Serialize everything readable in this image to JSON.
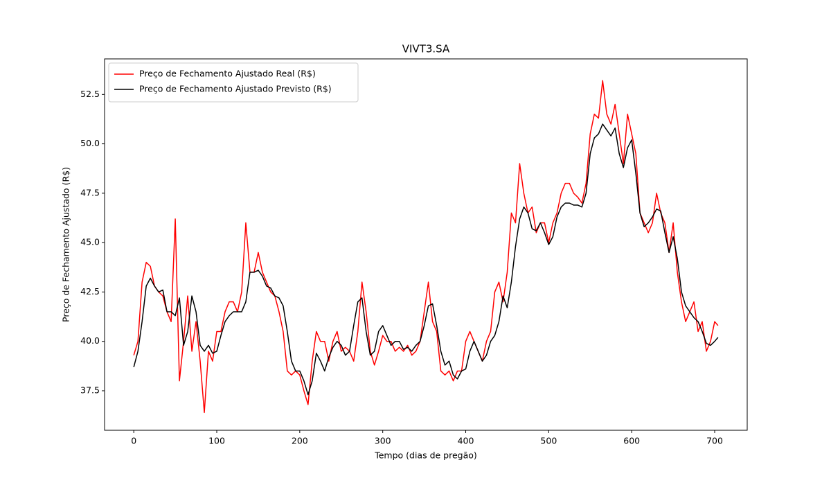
{
  "chart_data": {
    "type": "line",
    "title": "VIVT3.SA",
    "x_label": "Tempo (dias de pregão)",
    "y_label": "Preço de Fechamento Ajustado (R$)",
    "x": [
      0,
      5,
      10,
      15,
      20,
      25,
      30,
      35,
      40,
      45,
      50,
      55,
      60,
      65,
      70,
      75,
      80,
      85,
      90,
      95,
      100,
      105,
      110,
      115,
      120,
      125,
      130,
      135,
      140,
      145,
      150,
      155,
      160,
      165,
      170,
      175,
      180,
      185,
      190,
      195,
      200,
      205,
      210,
      215,
      220,
      225,
      230,
      235,
      240,
      245,
      250,
      255,
      260,
      265,
      270,
      275,
      280,
      285,
      290,
      295,
      300,
      305,
      310,
      315,
      320,
      325,
      330,
      335,
      340,
      345,
      350,
      355,
      360,
      365,
      370,
      375,
      380,
      385,
      390,
      395,
      400,
      405,
      410,
      415,
      420,
      425,
      430,
      435,
      440,
      445,
      450,
      455,
      460,
      465,
      470,
      475,
      480,
      485,
      490,
      495,
      500,
      505,
      510,
      515,
      520,
      525,
      530,
      535,
      540,
      545,
      550,
      555,
      560,
      565,
      570,
      575,
      580,
      585,
      590,
      595,
      600,
      605,
      610,
      615,
      620,
      625,
      630,
      635,
      640,
      645,
      650,
      655,
      660,
      665,
      670,
      675,
      680,
      685,
      690,
      695,
      700,
      704
    ],
    "series": [
      {
        "name": "Preço de Fechamento Ajustado Real (R$)",
        "color": "#ff0000",
        "values": [
          39.3,
          40.0,
          43.0,
          44.0,
          43.8,
          42.8,
          42.5,
          42.3,
          41.5,
          41.0,
          46.2,
          38.0,
          40.0,
          42.3,
          39.5,
          41.0,
          39.0,
          36.4,
          39.5,
          39.0,
          40.5,
          40.5,
          41.5,
          42.0,
          42.0,
          41.5,
          42.5,
          46.0,
          43.5,
          43.5,
          44.5,
          43.5,
          43.0,
          42.5,
          42.3,
          41.5,
          40.5,
          38.5,
          38.3,
          38.5,
          38.3,
          37.5,
          36.8,
          39.0,
          40.5,
          40.0,
          40.0,
          39.0,
          40.0,
          40.5,
          39.5,
          39.7,
          39.5,
          39.0,
          40.5,
          43.0,
          41.5,
          39.5,
          38.8,
          39.5,
          40.3,
          40.0,
          40.0,
          39.5,
          39.7,
          39.5,
          39.8,
          39.3,
          39.5,
          40.0,
          41.5,
          43.0,
          41.0,
          40.5,
          38.5,
          38.3,
          38.5,
          38.0,
          38.5,
          38.5,
          40.0,
          40.5,
          40.0,
          39.5,
          39.0,
          40.0,
          40.5,
          42.5,
          43.0,
          42.0,
          43.5,
          46.5,
          46.0,
          49.0,
          47.5,
          46.5,
          46.8,
          45.5,
          46.0,
          46.0,
          45.0,
          46.0,
          46.5,
          47.5,
          48.0,
          48.0,
          47.5,
          47.3,
          47.0,
          48.0,
          50.5,
          51.5,
          51.3,
          53.2,
          51.5,
          51.0,
          52.0,
          50.5,
          49.0,
          51.5,
          50.5,
          49.5,
          46.5,
          46.0,
          45.5,
          46.0,
          47.5,
          46.5,
          46.0,
          44.5,
          46.0,
          43.5,
          42.0,
          41.0,
          41.5,
          42.0,
          40.5,
          41.0,
          39.5,
          40.0,
          41.0,
          40.8
        ]
      },
      {
        "name": "Preço de Fechamento Ajustado Previsto (R$)",
        "color": "#000000",
        "values": [
          38.7,
          39.5,
          41.0,
          42.8,
          43.2,
          42.8,
          42.5,
          42.6,
          41.5,
          41.5,
          41.3,
          42.2,
          39.8,
          40.5,
          42.3,
          41.5,
          39.8,
          39.5,
          39.8,
          39.4,
          39.5,
          40.3,
          41.0,
          41.3,
          41.5,
          41.5,
          41.5,
          42.0,
          43.5,
          43.5,
          43.6,
          43.3,
          42.8,
          42.7,
          42.3,
          42.2,
          41.8,
          40.5,
          39.0,
          38.5,
          38.5,
          38.0,
          37.3,
          38.0,
          39.4,
          39.0,
          38.5,
          39.2,
          39.7,
          40.0,
          39.8,
          39.3,
          39.5,
          40.8,
          42.0,
          42.2,
          40.5,
          39.3,
          39.5,
          40.5,
          40.8,
          40.3,
          39.8,
          40.0,
          40.0,
          39.6,
          39.7,
          39.5,
          39.8,
          40.0,
          40.8,
          41.8,
          41.9,
          40.8,
          39.5,
          38.8,
          39.0,
          38.3,
          38.1,
          38.5,
          38.6,
          39.5,
          40.0,
          39.5,
          39.0,
          39.3,
          40.0,
          40.3,
          41.0,
          42.3,
          41.7,
          43.0,
          44.8,
          46.2,
          46.8,
          46.5,
          45.7,
          45.6,
          46.0,
          45.5,
          44.9,
          45.3,
          46.3,
          46.8,
          47.0,
          47.0,
          46.9,
          46.9,
          46.8,
          47.5,
          49.5,
          50.3,
          50.5,
          51.0,
          50.7,
          50.4,
          50.8,
          49.5,
          48.8,
          49.8,
          50.2,
          48.5,
          46.5,
          45.8,
          46.0,
          46.3,
          46.7,
          46.6,
          45.5,
          44.5,
          45.3,
          44.2,
          42.5,
          41.8,
          41.5,
          41.2,
          41.0,
          40.5,
          39.9,
          39.8,
          40.0,
          40.2
        ]
      }
    ],
    "xlim": [
      -35.2,
      739.2
    ],
    "ylim": [
      35.5,
      54.3
    ],
    "xticks": [
      0,
      100,
      200,
      300,
      400,
      500,
      600,
      700
    ],
    "yticks": [
      37.5,
      {
        "value": 40,
        "label": "40.0"
      },
      42.5,
      {
        "value": 45,
        "label": "45.0"
      },
      47.5,
      {
        "value": 50,
        "label": "50.0"
      },
      52.5
    ],
    "legend": "upper left"
  }
}
